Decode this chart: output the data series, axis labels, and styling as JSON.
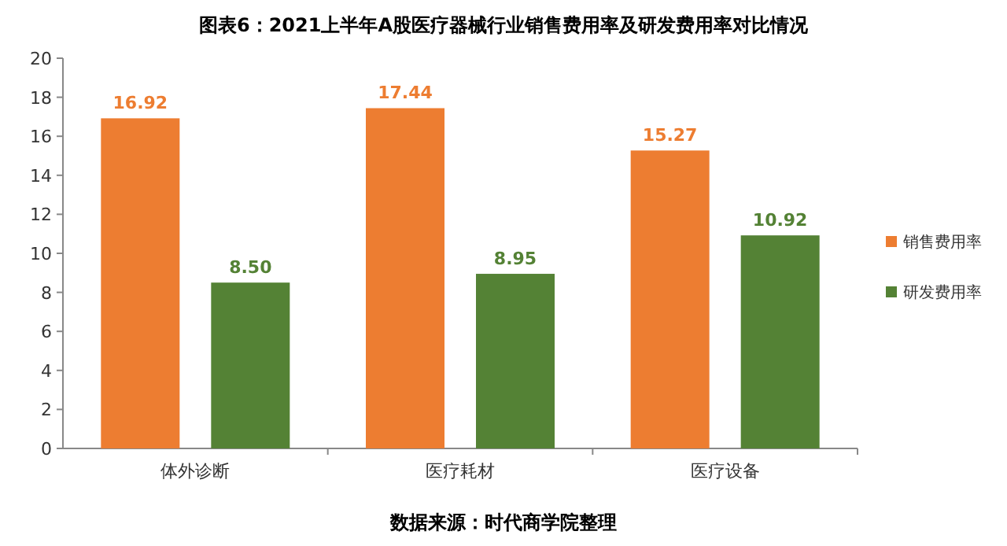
{
  "chart_data": {
    "type": "bar",
    "title": "图表6：2021上半年A股医疗器械行业销售费用率及研发费用率对比情况",
    "categories": [
      "体外诊断",
      "医疗耗材",
      "医疗设备"
    ],
    "series": [
      {
        "name": "销售费用率",
        "color": "#ed7d31",
        "values": [
          16.92,
          17.44,
          15.27
        ],
        "value_labels": [
          "16.92",
          "17.44",
          "15.27"
        ]
      },
      {
        "name": "研发费用率",
        "color": "#548235",
        "values": [
          8.5,
          8.95,
          10.92
        ],
        "value_labels": [
          "8.50",
          "8.95",
          "10.92"
        ]
      }
    ],
    "ylim": [
      0,
      20
    ],
    "yticks": [
      0,
      2,
      4,
      6,
      8,
      10,
      12,
      14,
      16,
      18,
      20
    ],
    "legend": "right",
    "grid": false,
    "annotations": [
      "数据来源：时代商学院整理"
    ]
  }
}
